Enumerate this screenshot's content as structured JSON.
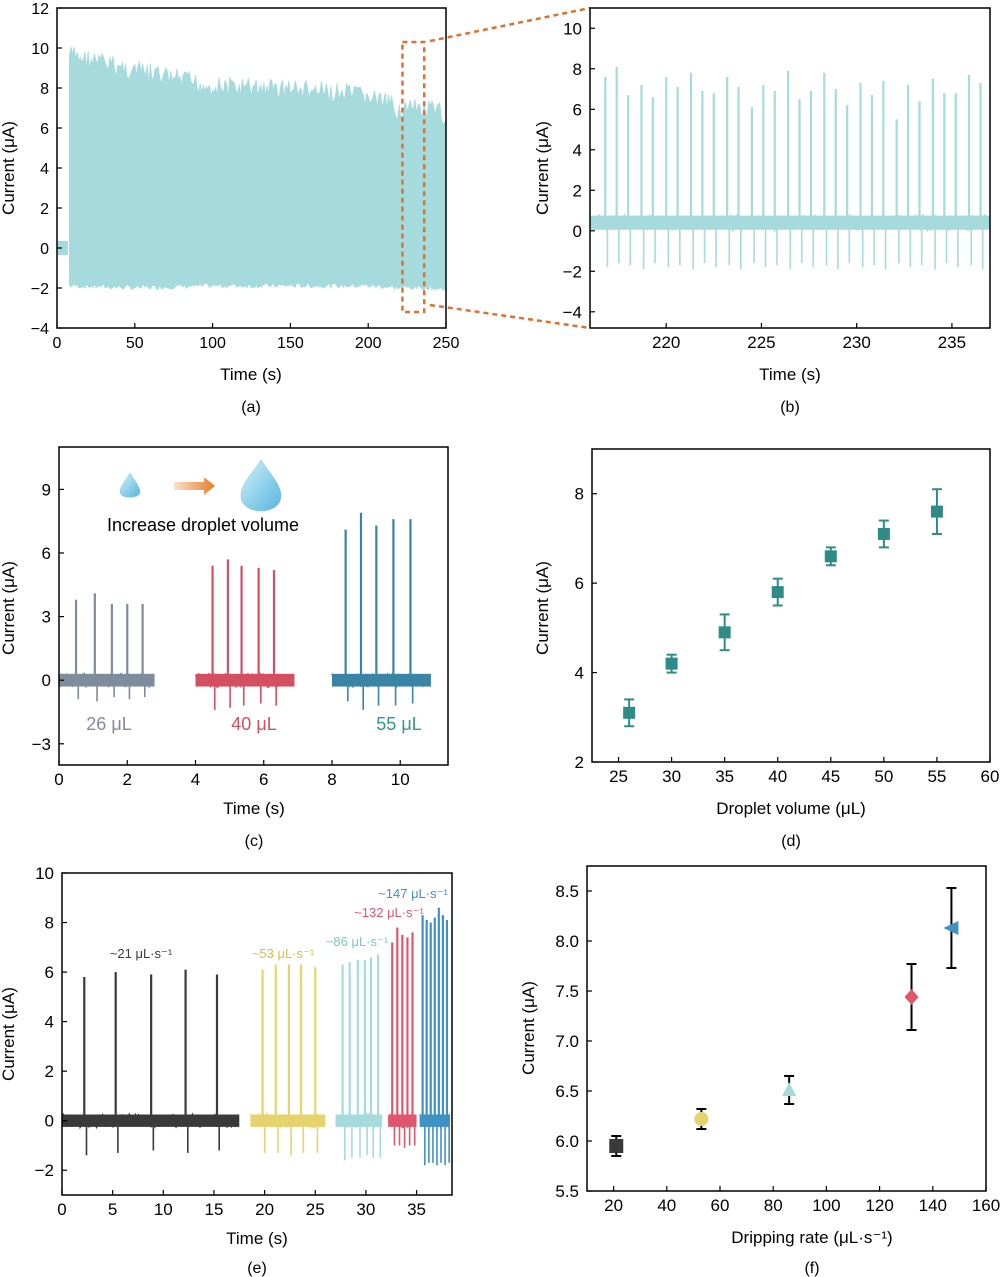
{
  "chart_data": [
    {
      "id": "a",
      "panel_label": "(a)",
      "type": "line",
      "xlabel": "Time (s)",
      "ylabel": "Current (μA)",
      "xlim": [
        0,
        250
      ],
      "ylim": [
        -4,
        12
      ],
      "xticks": [
        "0",
        "50",
        "100",
        "150",
        "200",
        "250"
      ],
      "yticks": [
        "−4",
        "−2",
        "0",
        "2",
        "4",
        "6",
        "8",
        "10",
        "12"
      ],
      "series": [
        {
          "color": "#a6dbdd",
          "x": [
            0,
            5,
            8,
            50,
            100,
            150,
            200,
            220,
            240,
            250
          ],
          "y_max": [
            0.1,
            0.1,
            10.2,
            9.4,
            8.6,
            8.5,
            8.1,
            7.5,
            7.4,
            7.2
          ],
          "y_min": [
            0.0,
            0.0,
            -2.0,
            -2.1,
            -2.0,
            -2.0,
            -2.0,
            -2.1,
            -2.1,
            -2.2
          ]
        }
      ],
      "zoom_box_x": [
        222,
        236
      ],
      "zoom_box_y": [
        -3.2,
        10.3
      ]
    },
    {
      "id": "b",
      "panel_label": "(b)",
      "type": "line",
      "xlabel": "Time (s)",
      "ylabel": "Current (μA)",
      "xlim": [
        216,
        237
      ],
      "ylim": [
        -4.8,
        11
      ],
      "xticks": [
        "220",
        "225",
        "230",
        "235"
      ],
      "yticks": [
        "−4",
        "−2",
        "0",
        "2",
        "4",
        "6",
        "8",
        "10"
      ],
      "series": [
        {
          "color": "#a6dbdd",
          "spike_times": [
            216.8,
            217.4,
            218.0,
            218.7,
            219.3,
            220.0,
            220.6,
            221.3,
            221.9,
            222.5,
            223.2,
            223.8,
            224.5,
            225.1,
            225.7,
            226.4,
            227.0,
            227.6,
            228.3,
            228.9,
            229.5,
            230.2,
            230.8,
            231.4,
            232.1,
            232.7,
            233.3,
            234.0,
            234.6,
            235.2,
            235.9,
            236.5
          ],
          "spike_peaks": [
            7.6,
            8.1,
            6.7,
            7.2,
            6.6,
            7.6,
            7.1,
            7.8,
            6.9,
            6.8,
            7.6,
            7.1,
            6.1,
            7.2,
            6.9,
            7.9,
            6.5,
            6.9,
            7.8,
            7.0,
            6.2,
            7.3,
            6.7,
            7.4,
            5.5,
            7.2,
            6.4,
            7.5,
            6.8,
            6.8,
            7.7,
            7.3
          ],
          "spike_mins": [
            -1.8,
            -1.6,
            -1.7,
            -1.9,
            -1.6,
            -1.8,
            -1.7,
            -1.9,
            -1.6,
            -1.8,
            -1.7,
            -1.9,
            -1.6,
            -1.8,
            -1.7,
            -1.9,
            -1.6,
            -1.8,
            -1.7,
            -1.9,
            -1.6,
            -1.8,
            -1.7,
            -1.9,
            -1.6,
            -1.8,
            -1.7,
            -1.9,
            -1.6,
            -1.8,
            -1.7,
            -1.9
          ],
          "baseline": 0.4
        }
      ]
    },
    {
      "id": "c",
      "panel_label": "(c)",
      "type": "line",
      "xlabel": "Time (s)",
      "ylabel": "Current (μA)",
      "xlim": [
        0,
        11.4
      ],
      "ylim": [
        -4,
        11
      ],
      "xticks": [
        "0",
        "2",
        "4",
        "6",
        "8",
        "10"
      ],
      "yticks": [
        "−3",
        "0",
        "3",
        "6",
        "9"
      ],
      "annotation": "Increase droplet volume",
      "series": [
        {
          "name": "26 μL",
          "color": "#7f8c9d",
          "x_range": [
            0,
            2.8
          ],
          "spike_times": [
            0.5,
            1.05,
            1.55,
            2.0,
            2.45
          ],
          "spike_peaks": [
            3.8,
            4.1,
            3.6,
            3.6,
            3.6
          ],
          "spike_mins": [
            -0.9,
            -1.0,
            -0.8,
            -0.9,
            -0.8
          ]
        },
        {
          "name": "40 μL",
          "color": "#d44f62",
          "x_range": [
            4.0,
            6.9
          ],
          "spike_times": [
            4.5,
            4.95,
            5.35,
            5.85,
            6.3
          ],
          "spike_peaks": [
            5.4,
            5.7,
            5.4,
            5.3,
            5.2
          ],
          "spike_mins": [
            -1.4,
            -1.3,
            -1.2,
            -1.1,
            -1.2
          ]
        },
        {
          "name": "55 μL",
          "color": "#3a84a5",
          "x_range": [
            8.0,
            10.9
          ],
          "spike_times": [
            8.4,
            8.85,
            9.3,
            9.8,
            10.3
          ],
          "spike_peaks": [
            7.1,
            7.9,
            7.3,
            7.6,
            7.6
          ],
          "spike_mins": [
            -1.0,
            -1.4,
            -1.2,
            -1.2,
            -1.1
          ]
        }
      ],
      "label_colors": [
        "#7f8c9d",
        "#d44f62",
        "#2e9c86"
      ]
    },
    {
      "id": "d",
      "panel_label": "(d)",
      "type": "scatter",
      "xlabel": "Droplet volume (μL)",
      "ylabel": "Current (μA)",
      "xlim": [
        22.5,
        60
      ],
      "ylim": [
        2,
        9
      ],
      "xticks": [
        "25",
        "30",
        "35",
        "40",
        "45",
        "50",
        "55",
        "60"
      ],
      "yticks": [
        "2",
        "4",
        "6",
        "8"
      ],
      "series": [
        {
          "color": "#2e8b86",
          "marker": "square",
          "x": [
            26,
            30,
            35,
            40,
            45,
            50,
            55
          ],
          "y": [
            3.1,
            4.2,
            4.9,
            5.8,
            6.6,
            7.1,
            7.6
          ],
          "err": [
            0.3,
            0.2,
            0.4,
            0.3,
            0.2,
            0.3,
            0.5
          ]
        }
      ]
    },
    {
      "id": "e",
      "panel_label": "(e)",
      "type": "line",
      "xlabel": "Time (s)",
      "ylabel": "Current (μA)",
      "xlim": [
        0,
        38.5
      ],
      "ylim": [
        -3,
        10
      ],
      "xticks": [
        "0",
        "5",
        "10",
        "15",
        "20",
        "25",
        "30",
        "35"
      ],
      "yticks": [
        "−2",
        "0",
        "2",
        "4",
        "6",
        "8",
        "10"
      ],
      "series": [
        {
          "name": "~21 μL·s⁻¹",
          "color": "#3a3a3a",
          "x_range": [
            0,
            17.5
          ],
          "spike_times": [
            2.2,
            5.3,
            8.8,
            12.2,
            15.3
          ],
          "spike_peaks": [
            5.8,
            6.0,
            5.9,
            6.1,
            5.9
          ],
          "spike_mins": [
            -1.4,
            -1.3,
            -1.2,
            -1.3,
            -1.2
          ]
        },
        {
          "name": "~53 μL·s⁻¹",
          "color": "#e7d36e",
          "x_range": [
            18.6,
            26.0
          ],
          "spike_times": [
            19.8,
            21.1,
            22.4,
            23.6,
            25.0
          ],
          "spike_peaks": [
            6.1,
            6.3,
            6.3,
            6.3,
            6.2
          ],
          "spike_mins": [
            -1.3,
            -1.3,
            -1.4,
            -1.3,
            -1.3
          ]
        },
        {
          "name": "~86 μL·s⁻¹",
          "color": "#a6dbdd",
          "x_range": [
            27.0,
            31.6
          ],
          "spike_times": [
            27.7,
            28.4,
            29.2,
            29.9,
            30.5,
            31.2
          ],
          "spike_peaks": [
            6.3,
            6.4,
            6.5,
            6.5,
            6.6,
            6.7
          ],
          "spike_mins": [
            -1.6,
            -1.5,
            -1.5,
            -1.4,
            -1.5,
            -1.5
          ]
        },
        {
          "name": "~132 μL·s⁻¹",
          "color": "#e0566d",
          "x_range": [
            32.2,
            35.0
          ],
          "spike_times": [
            32.6,
            33.1,
            33.6,
            34.1,
            34.6
          ],
          "spike_peaks": [
            7.2,
            7.8,
            7.5,
            7.4,
            7.6
          ],
          "spike_mins": [
            -1.0,
            -1.0,
            -1.1,
            -1.0,
            -1.0
          ]
        },
        {
          "name": "~147 μL·s⁻¹",
          "color": "#3f92c6",
          "x_range": [
            35.3,
            38.3
          ],
          "spike_times": [
            35.6,
            36.0,
            36.4,
            36.8,
            37.2,
            37.6,
            38.0
          ],
          "spike_peaks": [
            8.3,
            8.1,
            8.0,
            8.2,
            8.6,
            8.3,
            8.1
          ],
          "spike_mins": [
            -1.8,
            -1.7,
            -1.7,
            -1.8,
            -1.7,
            -1.8,
            -1.7
          ]
        }
      ]
    },
    {
      "id": "f",
      "panel_label": "(f)",
      "type": "scatter",
      "xlabel": "Dripping rate (μL·s⁻¹)",
      "ylabel": "Current (μA)",
      "xlim": [
        10,
        160
      ],
      "ylim": [
        5.5,
        8.75
      ],
      "xticks": [
        "20",
        "40",
        "60",
        "80",
        "100",
        "120",
        "140",
        "160"
      ],
      "yticks": [
        "5.5",
        "6.0",
        "6.5",
        "7.0",
        "7.5",
        "8.0",
        "8.5"
      ],
      "points": [
        {
          "x": 21,
          "y": 5.95,
          "err": 0.1,
          "color": "#3a3a3a",
          "marker": "square"
        },
        {
          "x": 53,
          "y": 6.22,
          "err": 0.1,
          "color": "#e7d36e",
          "marker": "circle"
        },
        {
          "x": 86,
          "y": 6.51,
          "err": 0.14,
          "color": "#a6dbdd",
          "marker": "triangle-up"
        },
        {
          "x": 132,
          "y": 7.44,
          "err": 0.33,
          "color": "#e0566d",
          "marker": "diamond"
        },
        {
          "x": 147,
          "y": 8.13,
          "err": 0.4,
          "color": "#3f92c6",
          "marker": "triangle-left"
        }
      ]
    }
  ],
  "colors": {
    "axis": "#000000",
    "zoom_box": "#e0702f",
    "arrow": "#e88a3a",
    "droplet": "#8fd0ea"
  },
  "icons": [
    "small-droplet-icon",
    "large-droplet-icon",
    "orange-arrow-icon"
  ]
}
